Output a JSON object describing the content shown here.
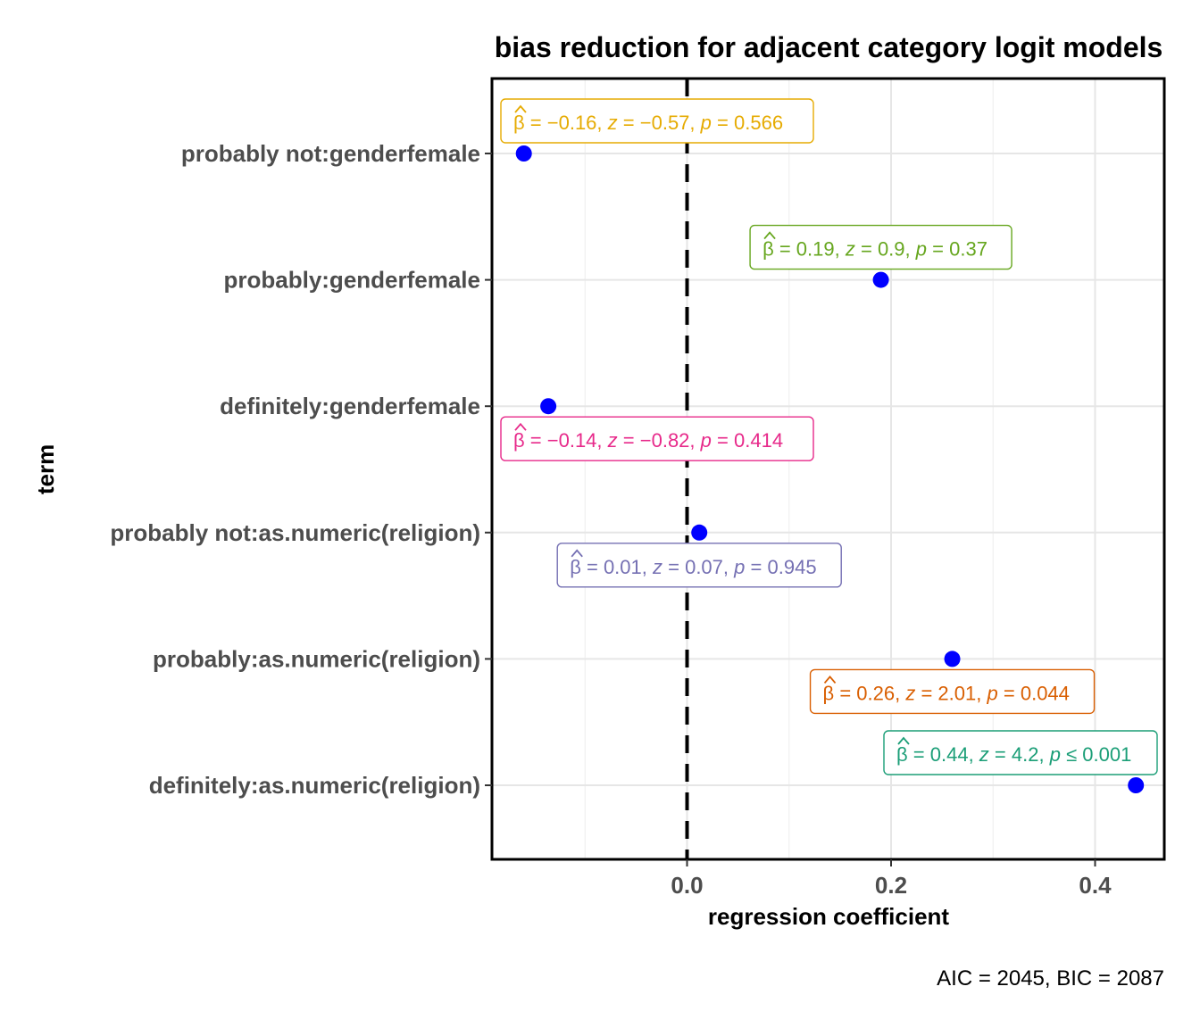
{
  "chart_data": {
    "type": "scatter",
    "title": "bias reduction for adjacent category logit models",
    "xlabel": "regression coefficient",
    "ylabel": "term",
    "caption": "AIC = 2045, BIC = 2087",
    "xlim": [
      -0.16,
      0.47
    ],
    "x_ticks": [
      0.0,
      0.2,
      0.4
    ],
    "x_tick_labels": [
      "0.0",
      "0.2",
      "0.4"
    ],
    "reference_line": 0,
    "grid": true,
    "point_color": "#0000ff",
    "terms": [
      {
        "label": "probably not:genderfemale",
        "estimate": -0.16,
        "annotation": {
          "beta": "0.16",
          "beta_sign": "−",
          "z": "0.57",
          "z_sign": "−",
          "p_rel": "=",
          "p": "0.566",
          "color": "#E6AB02",
          "placement": "above"
        }
      },
      {
        "label": "probably:genderfemale",
        "estimate": 0.19,
        "annotation": {
          "beta": "0.19",
          "beta_sign": "",
          "z": "0.9",
          "z_sign": "",
          "p_rel": "=",
          "p": "0.37",
          "color": "#66A61E",
          "placement": "above"
        }
      },
      {
        "label": "definitely:genderfemale",
        "estimate": -0.136,
        "annotation": {
          "beta": "0.14",
          "beta_sign": "−",
          "z": "0.82",
          "z_sign": "−",
          "p_rel": "=",
          "p": "0.414",
          "color": "#E7298A",
          "placement": "below"
        }
      },
      {
        "label": "probably not:as.numeric(religion)",
        "estimate": 0.012,
        "annotation": {
          "beta": "0.01",
          "beta_sign": "",
          "z": "0.07",
          "z_sign": "",
          "p_rel": "=",
          "p": "0.945",
          "color": "#7570B3",
          "placement": "below"
        }
      },
      {
        "label": "probably:as.numeric(religion)",
        "estimate": 0.26,
        "annotation": {
          "beta": "0.26",
          "beta_sign": "",
          "z": "2.01",
          "z_sign": "",
          "p_rel": "=",
          "p": "0.044",
          "color": "#D95F02",
          "placement": "below"
        }
      },
      {
        "label": "definitely:as.numeric(religion)",
        "estimate": 0.44,
        "annotation": {
          "beta": "0.44",
          "beta_sign": "",
          "z": "4.2",
          "z_sign": "",
          "p_rel": "≤",
          "p": "0.001",
          "color": "#1B9E77",
          "placement": "above"
        }
      }
    ]
  }
}
